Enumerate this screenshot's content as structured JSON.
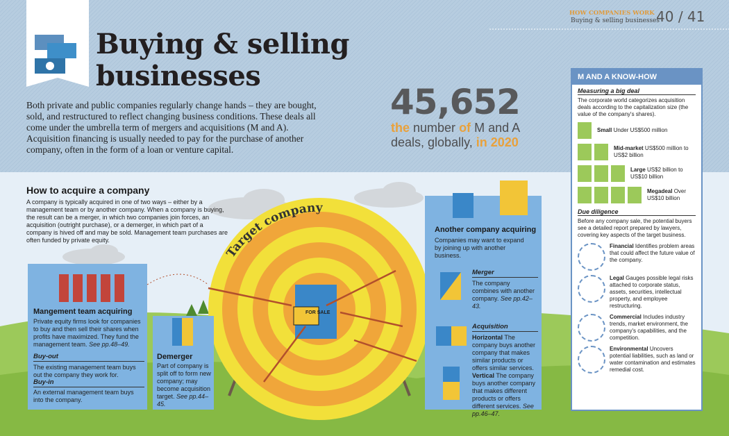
{
  "header": {
    "section": "HOW COMPANIES WORK",
    "subsection": "Buying & selling businesses",
    "page_left": "40",
    "separator": "/",
    "page_right": "41"
  },
  "title": {
    "line1": "Buying & selling",
    "line2": "businesses"
  },
  "intro": "Both private and public companies regularly change hands – they are bought, sold, and restructured to reflect changing business conditions. These deals all come under the umbrella term of mergers and acquisitions (M and A). Acquisition financing is usually needed to pay for the purchase of another company, often in the form of a loan or venture capital.",
  "stat": {
    "number": "45,652",
    "caption": [
      "the",
      "number",
      "of",
      "M and A deals, globally,",
      "in 2020"
    ]
  },
  "how_to_acquire": {
    "heading": "How to acquire a company",
    "text": "A company is typically acquired in one of two ways – either by a management team or by another company. When a company is buying, the result can be a merger, in which two companies join forces, an acquisition (outright purchase), or a demerger, in which part of a company is hived off and may be sold. Management team purchases are often funded by private equity."
  },
  "target": {
    "label": "Target company",
    "sign": "FOR SALE"
  },
  "management": {
    "heading": "Mangement team acquiring",
    "text": "Private equity firms look for companies to buy and then sell their shares when profits have maximized. They fund the management team.",
    "ref": "See pp.48–49.",
    "buyout": {
      "heading": "Buy-out",
      "text": "The existing management team buys out the company they work for."
    },
    "buyin": {
      "heading": "Buy-in",
      "text": "An external management team buys into the company."
    }
  },
  "demerger": {
    "heading": "Demerger",
    "text": "Part of company is split off to form new company; may become acquisition target.",
    "ref": "See pp.44–45."
  },
  "another": {
    "heading": "Another company acquiring",
    "text": "Companies may want to expand by joining up with another business.",
    "merger": {
      "heading": "Merger",
      "text": "The company combines with another company.",
      "ref": "See pp.42–43."
    },
    "acquisition": {
      "heading": "Acquisition",
      "horizontal": {
        "label": "Horizontal",
        "text": "The company buys another company that makes similar products or offers similar services."
      },
      "vertical": {
        "label": "Vertical",
        "text": "The company buys another company that makes different products or offers different services.",
        "ref": "See pp.46–47."
      }
    }
  },
  "sidebar": {
    "title": "M AND A KNOW-HOW",
    "measuring": {
      "heading": "Measuring a big deal",
      "text": "The corporate world categorizes acquisition deals according to the capitalization size (the value of the company's shares).",
      "sizes": [
        {
          "label": "Small",
          "desc": "Under US$500 million"
        },
        {
          "label": "Mid-market",
          "desc": "US$500 million to US$2 billion"
        },
        {
          "label": "Large",
          "desc": "US$2 billion to US$10 billion"
        },
        {
          "label": "Megadeal",
          "desc": "Over US$10 billion"
        }
      ]
    },
    "diligence": {
      "heading": "Due diligence",
      "text": "Before any company sale, the potential buyers see a detailed report prepared by lawyers, covering key aspects of the target business.",
      "items": [
        {
          "label": "Financial",
          "desc": "Identifies problem areas that could affect the future value of the company."
        },
        {
          "label": "Legal",
          "desc": "Gauges possible legal risks attached to corporate status, assets, securities, intellectual property, and employee restructuring."
        },
        {
          "label": "Commercial",
          "desc": "Includes industry trends, market environment, the company's capabilities, and the competition."
        },
        {
          "label": "Environmental",
          "desc": "Uncovers potential liabilities, such as land or water contamination and estimates remedial cost."
        }
      ]
    }
  }
}
